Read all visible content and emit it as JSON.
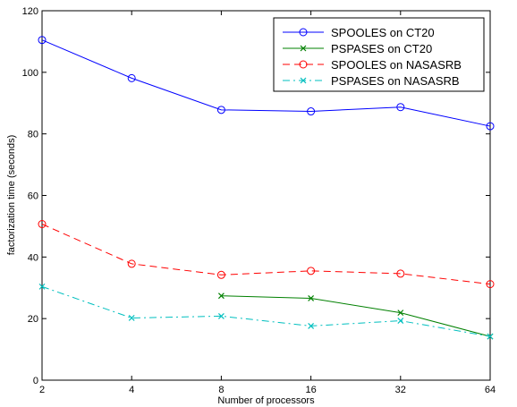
{
  "chart_data": {
    "type": "line",
    "title": "",
    "xlabel": "Number of processors",
    "ylabel": "factorization time (seconds)",
    "x_scale": "log2",
    "x_ticks": [
      2,
      4,
      8,
      16,
      32,
      64
    ],
    "x_tick_labels": [
      "2",
      "4",
      "8",
      "16",
      "32",
      "64"
    ],
    "xlim": [
      2,
      64
    ],
    "y_ticks": [
      0,
      20,
      40,
      60,
      80,
      100,
      120
    ],
    "y_tick_labels": [
      "0",
      "20",
      "40",
      "60",
      "80",
      "100",
      "120"
    ],
    "ylim": [
      0,
      120
    ],
    "grid": false,
    "legend_position": "top-right",
    "series": [
      {
        "name": "SPOOLES on CT20",
        "color": "#0000ff",
        "line_style": "solid",
        "marker": "circle",
        "x": [
          2,
          4,
          8,
          16,
          32,
          64
        ],
        "y": [
          110.5,
          98.1,
          87.8,
          87.3,
          88.7,
          82.5
        ]
      },
      {
        "name": "PSPASES on CT20",
        "color": "#008000",
        "line_style": "solid",
        "marker": "x",
        "x": [
          8,
          16,
          32,
          64
        ],
        "y": [
          27.4,
          26.6,
          21.9,
          14.2
        ]
      },
      {
        "name": "SPOOLES on NASASRB",
        "color": "#ff0000",
        "line_style": "dashed",
        "marker": "circle",
        "x": [
          2,
          4,
          8,
          16,
          32,
          64
        ],
        "y": [
          50.7,
          37.8,
          34.2,
          35.5,
          34.6,
          31.2
        ]
      },
      {
        "name": "PSPASES on NASASRB",
        "color": "#00bfbf",
        "line_style": "dashdot",
        "marker": "x",
        "x": [
          2,
          4,
          8,
          16,
          32,
          64
        ],
        "y": [
          30.4,
          20.2,
          20.8,
          17.6,
          19.3,
          14.2
        ]
      }
    ]
  }
}
